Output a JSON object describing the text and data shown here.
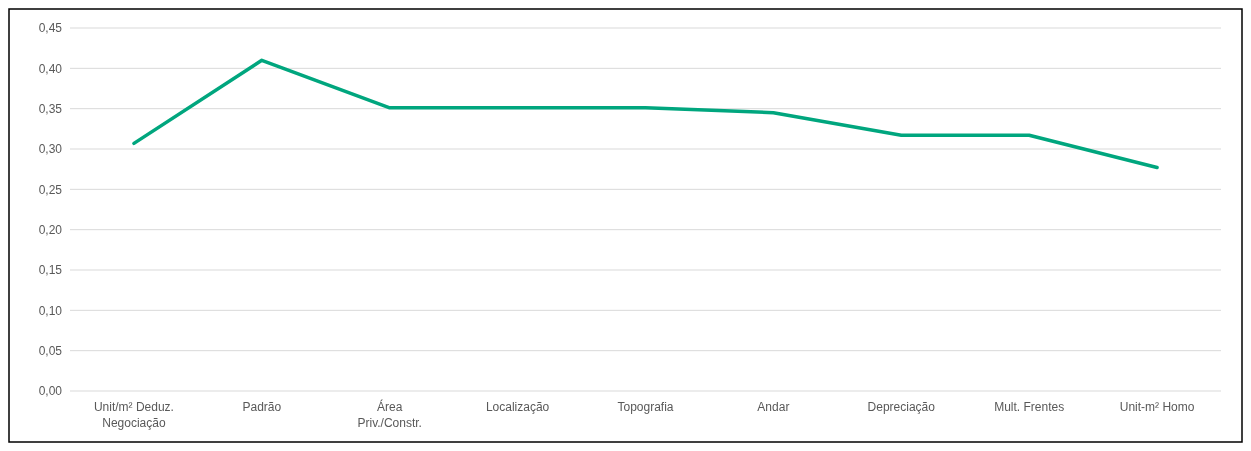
{
  "chart_data": {
    "type": "line",
    "categories": [
      "Unit/m² Deduz. Negociação",
      "Padrão",
      "Área Priv./Constr.",
      "Localização",
      "Topografia",
      "Andar",
      "Depreciação",
      "Mult. Frentes",
      "Unit-m² Homo"
    ],
    "series": [
      {
        "color": "#00a67e",
        "values": [
          0.307,
          0.41,
          0.351,
          0.351,
          0.351,
          0.345,
          0.317,
          0.317,
          0.277
        ]
      }
    ],
    "ylim": [
      0,
      0.45
    ],
    "yticks": [
      {
        "value": 0,
        "label": "0,00"
      },
      {
        "value": 0.05,
        "label": "0,05"
      },
      {
        "value": 0.1,
        "label": "0,10"
      },
      {
        "value": 0.15,
        "label": "0,15"
      },
      {
        "value": 0.2,
        "label": "0,20"
      },
      {
        "value": 0.25,
        "label": "0,25"
      },
      {
        "value": 0.3,
        "label": "0,30"
      },
      {
        "value": 0.35,
        "label": "0,35"
      },
      {
        "value": 0.4,
        "label": "0,40"
      },
      {
        "value": 0.45,
        "label": "0,45"
      }
    ],
    "grid": "y",
    "marker": "none",
    "line_style": "solid"
  }
}
